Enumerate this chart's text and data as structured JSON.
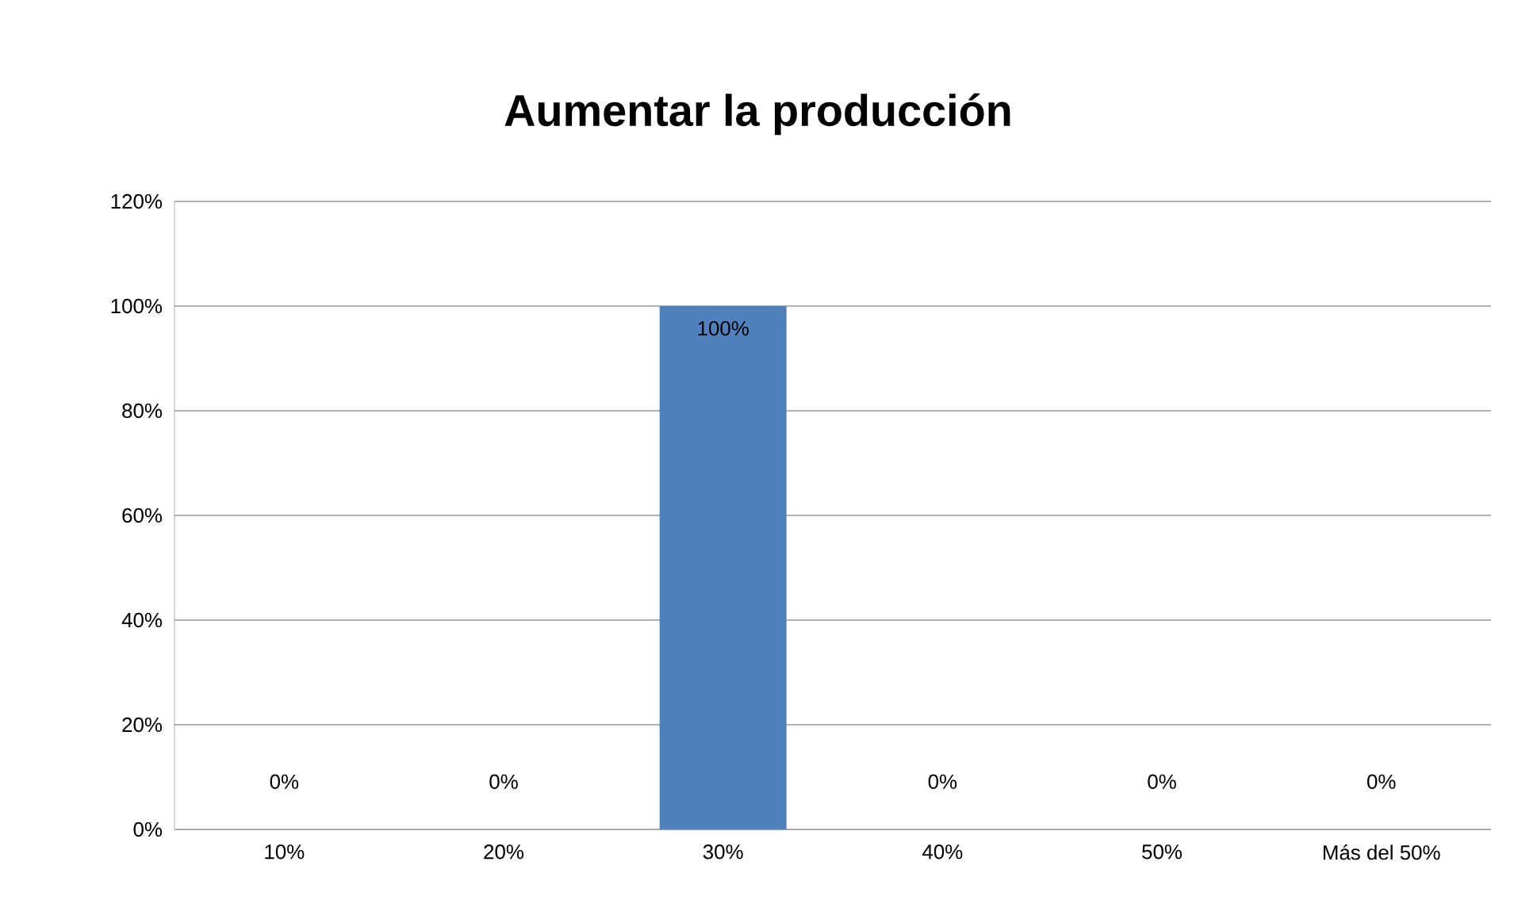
{
  "chart_data": {
    "type": "bar",
    "title": "Aumentar la producción",
    "categories": [
      "10%",
      "20%",
      "30%",
      "40%",
      "50%",
      "Más del 50%"
    ],
    "values": [
      0,
      0,
      100,
      0,
      0,
      0
    ],
    "value_labels": [
      "0%",
      "0%",
      "100%",
      "0%",
      "0%",
      "0%"
    ],
    "color": "#4f81bd",
    "ylim": [
      0,
      120
    ],
    "yticks": [
      {
        "value": 0,
        "label": "0%"
      },
      {
        "value": 20,
        "label": "20%"
      },
      {
        "value": 40,
        "label": "40%"
      },
      {
        "value": 60,
        "label": "60%"
      },
      {
        "value": 80,
        "label": "80%"
      },
      {
        "value": 100,
        "label": "100%"
      },
      {
        "value": 120,
        "label": "120%"
      }
    ],
    "grid": "y"
  }
}
